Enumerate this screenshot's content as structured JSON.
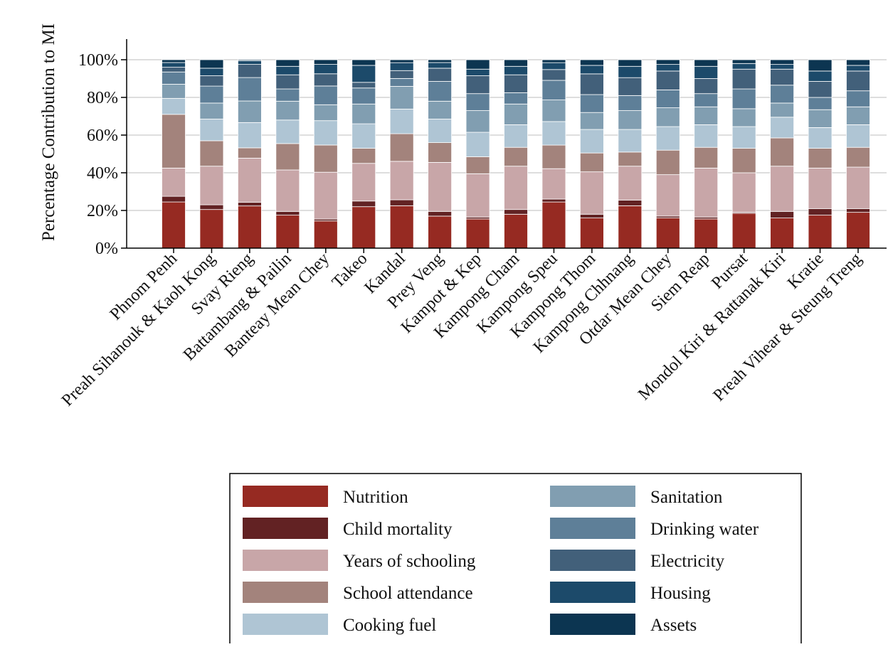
{
  "chart_data": {
    "type": "bar",
    "stacked": true,
    "percent_stacked": true,
    "title": "",
    "xlabel": "",
    "ylabel": "Percentage Contribution to MI",
    "ylim": [
      0,
      100
    ],
    "yticks": [
      0,
      20,
      40,
      60,
      80,
      100
    ],
    "ytick_labels": [
      "0%",
      "20%",
      "40%",
      "60%",
      "80%",
      "100%"
    ],
    "grid": {
      "horizontal": true,
      "vertical": false
    },
    "legend_position": "bottom",
    "categories": [
      "Phnom Penh",
      "Preah Sihanouk & Kaoh Kong",
      "Svay Rieng",
      "Battambang & Pailin",
      "Banteay Mean Chey",
      "Takeo",
      "Kandal",
      "Prey Veng",
      "Kampot & Kep",
      "Kampong Cham",
      "Kampong Speu",
      "Kampong Thom",
      "Kampong Chhnang",
      "Otdar Mean Chey",
      "Siem Reap",
      "Pursat",
      "Mondol Kiri & Rattanak Kiri",
      "Kratie",
      "Preah Vihear & Steung Treng"
    ],
    "series": [
      {
        "name": "Nutrition",
        "color": "#962a22",
        "values": [
          24.5,
          20.5,
          22.5,
          17.5,
          14.5,
          22,
          21.5,
          17,
          15.5,
          18,
          23.5,
          16,
          22.5,
          16,
          15.5,
          18.5,
          16,
          17.5,
          19
        ]
      },
      {
        "name": "Child mortality",
        "color": "#622223",
        "values": [
          3,
          2.5,
          2,
          2,
          1,
          3,
          3,
          2.5,
          1,
          2.5,
          1.5,
          2,
          3,
          1,
          1,
          0.5,
          3.5,
          3.5,
          2
        ]
      },
      {
        "name": "Years of schooling",
        "color": "#c8a6a8",
        "values": [
          15,
          20.5,
          23.5,
          22,
          25,
          20,
          19.5,
          26,
          23,
          23,
          15.5,
          22.5,
          18,
          22,
          26,
          21,
          24,
          21.5,
          22
        ]
      },
      {
        "name": "School attendance",
        "color": "#a3837c",
        "values": [
          28.5,
          13.5,
          5.5,
          14,
          14.5,
          8,
          14,
          10.5,
          9,
          10,
          12,
          10,
          7.5,
          13,
          11,
          13,
          15,
          10.5,
          10.5
        ]
      },
      {
        "name": "Cooking fuel",
        "color": "#afc5d4",
        "values": [
          8.5,
          11.5,
          13.5,
          12.5,
          13,
          13,
          12.5,
          12.5,
          13,
          12,
          12,
          12.5,
          12,
          12.5,
          12,
          11.5,
          11,
          11,
          12
        ]
      },
      {
        "name": "Sanitation",
        "color": "#819eb1",
        "values": [
          7.5,
          8.5,
          11.5,
          10,
          8.5,
          10.5,
          11.5,
          9.5,
          11.5,
          11,
          11,
          9,
          10,
          10,
          9.5,
          9.5,
          7.5,
          9.5,
          9.5
        ]
      },
      {
        "name": "Drinking water",
        "color": "#5e7f98",
        "values": [
          6.5,
          9,
          12.5,
          6.5,
          10,
          8.5,
          4,
          10.5,
          9,
          6,
          10,
          9.5,
          8,
          9.5,
          7,
          10.5,
          9.5,
          6.5,
          8.5
        ]
      },
      {
        "name": "Electricity",
        "color": "#42607a",
        "values": [
          2.5,
          5.5,
          7,
          7.5,
          6.5,
          3,
          4,
          7,
          9.5,
          9.5,
          5.5,
          11,
          9.5,
          10,
          8,
          10.5,
          8.5,
          8.5,
          10.5
        ]
      },
      {
        "name": "Housing",
        "color": "#1c4a6a",
        "values": [
          2.5,
          4,
          2,
          4.5,
          5,
          9,
          4,
          3,
          3.5,
          4.5,
          3.5,
          4.5,
          6,
          3.5,
          6.5,
          3,
          2.5,
          5.5,
          3
        ]
      },
      {
        "name": "Assets",
        "color": "#0c3551",
        "values": [
          1.5,
          4.5,
          0.5,
          3.5,
          2.5,
          3,
          1.5,
          1.5,
          5,
          3.5,
          1.5,
          3,
          3.5,
          2.5,
          3.5,
          2,
          2.5,
          6,
          3
        ]
      }
    ]
  }
}
